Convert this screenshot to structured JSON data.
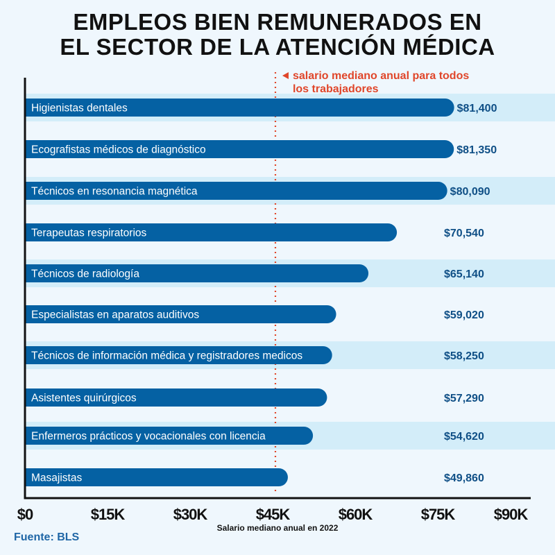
{
  "title_lines": [
    "EMPLEOS BIEN REMUNERADOS EN",
    "EL SECTOR DE LA ATENCIÓN MÉDICA"
  ],
  "source": "Fuente: BLS",
  "colors": {
    "bar": "#0561a3",
    "band": "#d3edf9",
    "background": "#eff7fd",
    "annotation": "#e0462a",
    "value_text": "#0f4f86"
  },
  "chart_data": {
    "type": "bar",
    "orientation": "horizontal",
    "categories": [
      "Higienistas dentales",
      "Ecografistas médicos de diagnóstico",
      "Técnicos en resonancia magnética",
      "Terapeutas respiratorios",
      "Técnicos de radiología",
      "Especialistas en aparatos auditivos",
      "Técnicos de información médica y registradores medicos",
      "Asistentes quirúrgicos",
      "Enfermeros prácticos y vocacionales con licencia",
      "Masajistas"
    ],
    "values": [
      81400,
      81350,
      80090,
      70540,
      65140,
      59020,
      58250,
      57290,
      54620,
      49860
    ],
    "value_labels": [
      "$81,400",
      "$81,350",
      "$80,090",
      "$70,540",
      "$65,140",
      "$59,020",
      "$58,250",
      "$57,290",
      "$54,620",
      "$49,860"
    ],
    "xlabel": "Salario mediano anual en 2022",
    "xlim": [
      0,
      90000
    ],
    "xticks": [
      0,
      15000,
      30000,
      45000,
      60000,
      75000,
      90000
    ],
    "xtick_labels": [
      "$0",
      "$15K",
      "$30K",
      "$45K",
      "$60K",
      "$75K",
      "$90K"
    ],
    "reference_line": {
      "value": 45500,
      "label_lines": [
        "salario mediano anual para todos",
        "los trabajadores"
      ]
    },
    "grid": false
  }
}
